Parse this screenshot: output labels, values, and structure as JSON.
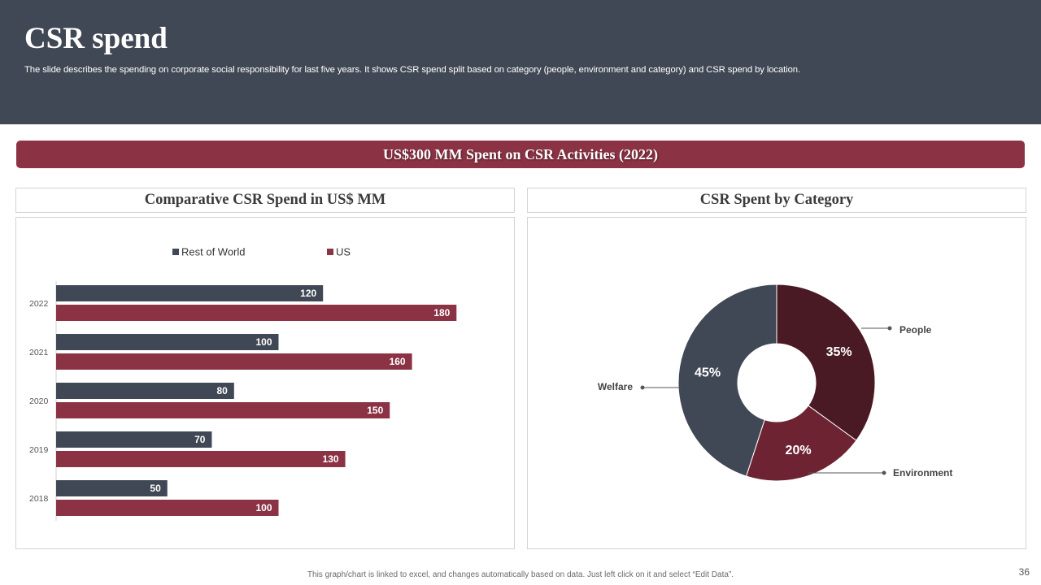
{
  "header": {
    "title": "CSR spend",
    "subtitle": "The slide describes the spending on corporate social responsibility for last five years. It shows CSR spend split based on category (people, environment and category) and CSR spend by location."
  },
  "banner": {
    "text": "US$300 MM Spent on CSR Activities (2022)"
  },
  "left_panel": {
    "title": "Comparative CSR Spend in US$ MM"
  },
  "right_panel": {
    "title": "CSR Spent by Category"
  },
  "footer": {
    "note": "This graph/chart is linked to excel, and changes automatically based on data. Just left click on it and select “Edit Data”.",
    "page_number": "36"
  },
  "colors": {
    "header_bg": "#414855",
    "accent": "#8b3345",
    "rest_of_world": "#414855",
    "us": "#8b3345",
    "people": "#4a1a24",
    "environment": "#6e2333",
    "welfare": "#414855"
  },
  "chart_data": [
    {
      "type": "bar",
      "orientation": "horizontal",
      "title": "Comparative CSR Spend in US$ MM",
      "categories": [
        "2022",
        "2021",
        "2020",
        "2019",
        "2018"
      ],
      "series": [
        {
          "name": "Rest of World",
          "values": [
            120,
            100,
            80,
            70,
            50
          ]
        },
        {
          "name": "US",
          "values": [
            180,
            160,
            150,
            130,
            100
          ]
        }
      ],
      "xlim": [
        0,
        200
      ],
      "legend": "top",
      "data_labels": true
    },
    {
      "type": "pie",
      "variant": "donut",
      "title": "CSR Spent by Category",
      "labels": [
        "People",
        "Environment",
        "Welfare"
      ],
      "values": [
        35,
        20,
        45
      ],
      "value_labels": [
        "35%",
        "20%",
        "45%"
      ]
    }
  ]
}
